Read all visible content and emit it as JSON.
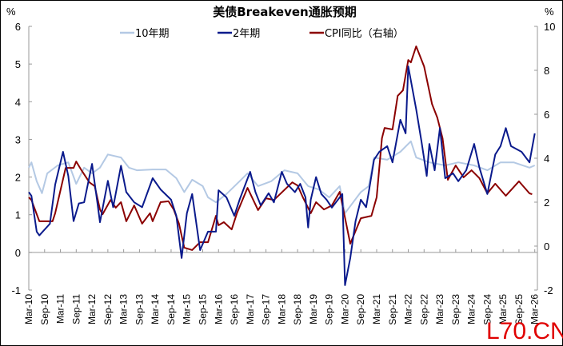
{
  "chart_data": {
    "type": "line",
    "title": "美债Breakeven通胀预期",
    "left_unit": "%",
    "right_unit": "%",
    "ylim_left": [
      -1,
      6
    ],
    "yticks_left": [
      "-1",
      "0",
      "1",
      "2",
      "3",
      "4",
      "5",
      "6"
    ],
    "ylim_right": [
      -2,
      10
    ],
    "yticks_right": [
      "-2",
      "0",
      "2",
      "4",
      "6",
      "8",
      "10"
    ],
    "xlim": [
      "2010-03",
      "2026-04"
    ],
    "xticks": [
      "Mar-10",
      "Sep-10",
      "Mar-11",
      "Sep-11",
      "Mar-12",
      "Sep-12",
      "Mar-13",
      "Sep-13",
      "Mar-14",
      "Sep-14",
      "Mar-15",
      "Sep-15",
      "Mar-16",
      "Sep-16",
      "Mar-17",
      "Sep-17",
      "Mar-18",
      "Sep-18",
      "Mar-19",
      "Sep-19",
      "Mar-20",
      "Sep-20",
      "Mar-21",
      "Sep-21",
      "Mar-22",
      "Sep-22",
      "Mar-23",
      "Sep-23",
      "Mar-24",
      "Sep-24",
      "Mar-25",
      "Sep-25",
      "Mar-26"
    ],
    "grid": false,
    "legend": "top",
    "series": [
      {
        "name": "10年期",
        "axis": "left",
        "color": "#b4c9e4",
        "points": [
          [
            "2010-03",
            2.25
          ],
          [
            "2010-04",
            2.39
          ],
          [
            "2010-06",
            1.89
          ],
          [
            "2010-08",
            1.57
          ],
          [
            "2010-10",
            2.1
          ],
          [
            "2011-02",
            2.31
          ],
          [
            "2011-06",
            2.39
          ],
          [
            "2011-09",
            1.82
          ],
          [
            "2011-12",
            2.25
          ],
          [
            "2012-03",
            2.1
          ],
          [
            "2012-06",
            2.25
          ],
          [
            "2012-09",
            2.6
          ],
          [
            "2013-02",
            2.52
          ],
          [
            "2013-05",
            2.25
          ],
          [
            "2013-08",
            2.18
          ],
          [
            "2014-02",
            2.2
          ],
          [
            "2014-07",
            2.2
          ],
          [
            "2014-11",
            1.97
          ],
          [
            "2015-02",
            1.6
          ],
          [
            "2015-05",
            1.93
          ],
          [
            "2015-09",
            1.76
          ],
          [
            "2015-11",
            1.46
          ],
          [
            "2016-02",
            1.33
          ],
          [
            "2016-06",
            1.55
          ],
          [
            "2016-11",
            1.89
          ],
          [
            "2017-02",
            2.1
          ],
          [
            "2017-06",
            1.76
          ],
          [
            "2017-11",
            1.89
          ],
          [
            "2018-04",
            2.18
          ],
          [
            "2018-09",
            2.1
          ],
          [
            "2019-01",
            1.76
          ],
          [
            "2019-05",
            1.67
          ],
          [
            "2019-09",
            1.46
          ],
          [
            "2020-01",
            1.76
          ],
          [
            "2020-03",
            1.04
          ],
          [
            "2020-09",
            1.6
          ],
          [
            "2020-12",
            1.76
          ],
          [
            "2021-02",
            2.52
          ],
          [
            "2021-07",
            2.46
          ],
          [
            "2021-12",
            2.67
          ],
          [
            "2022-04",
            2.95
          ],
          [
            "2022-06",
            2.52
          ],
          [
            "2022-11",
            2.39
          ],
          [
            "2023-05",
            2.31
          ],
          [
            "2023-10",
            2.39
          ],
          [
            "2024-04",
            2.31
          ],
          [
            "2024-09",
            2.18
          ],
          [
            "2025-02",
            2.39
          ],
          [
            "2025-07",
            2.39
          ],
          [
            "2026-01",
            2.25
          ],
          [
            "2026-03",
            2.31
          ]
        ]
      },
      {
        "name": "2年期",
        "axis": "left",
        "color": "#0a1a8c",
        "points": [
          [
            "2010-03",
            1.6
          ],
          [
            "2010-04",
            1.5
          ],
          [
            "2010-06",
            0.55
          ],
          [
            "2010-07",
            0.45
          ],
          [
            "2010-11",
            0.76
          ],
          [
            "2011-01",
            1.8
          ],
          [
            "2011-04",
            2.67
          ],
          [
            "2011-06",
            2.03
          ],
          [
            "2011-08",
            0.83
          ],
          [
            "2011-10",
            1.3
          ],
          [
            "2011-12",
            1.33
          ],
          [
            "2012-03",
            2.35
          ],
          [
            "2012-05",
            1.33
          ],
          [
            "2012-06",
            0.8
          ],
          [
            "2012-09",
            1.9
          ],
          [
            "2012-11",
            1.2
          ],
          [
            "2013-02",
            2.3
          ],
          [
            "2013-04",
            1.6
          ],
          [
            "2013-07",
            1.33
          ],
          [
            "2013-10",
            1.2
          ],
          [
            "2014-02",
            1.97
          ],
          [
            "2014-05",
            1.67
          ],
          [
            "2014-09",
            1.4
          ],
          [
            "2014-11",
            0.97
          ],
          [
            "2015-01",
            -0.15
          ],
          [
            "2015-03",
            1.04
          ],
          [
            "2015-05",
            1.55
          ],
          [
            "2015-08",
            0.06
          ],
          [
            "2015-11",
            0.55
          ],
          [
            "2016-02",
            0.55
          ],
          [
            "2016-03",
            1.65
          ],
          [
            "2016-06",
            1.46
          ],
          [
            "2016-09",
            0.97
          ],
          [
            "2016-11",
            1.4
          ],
          [
            "2017-03",
            2.14
          ],
          [
            "2017-05",
            1.6
          ],
          [
            "2017-07",
            1.25
          ],
          [
            "2017-10",
            1.57
          ],
          [
            "2017-12",
            1.33
          ],
          [
            "2018-03",
            2.14
          ],
          [
            "2018-05",
            1.82
          ],
          [
            "2018-08",
            1.6
          ],
          [
            "2018-10",
            1.82
          ],
          [
            "2018-12",
            1.46
          ],
          [
            "2019-01",
            0.66
          ],
          [
            "2019-02",
            1.4
          ],
          [
            "2019-04",
            2.0
          ],
          [
            "2019-06",
            1.55
          ],
          [
            "2019-08",
            1.4
          ],
          [
            "2019-10",
            1.19
          ],
          [
            "2020-01",
            1.46
          ],
          [
            "2020-02",
            1.55
          ],
          [
            "2020-03",
            -0.87
          ],
          [
            "2020-05",
            -0.15
          ],
          [
            "2020-07",
            0.83
          ],
          [
            "2020-09",
            1.4
          ],
          [
            "2020-11",
            1.2
          ],
          [
            "2020-12",
            1.6
          ],
          [
            "2021-02",
            2.46
          ],
          [
            "2021-04",
            2.67
          ],
          [
            "2021-07",
            2.82
          ],
          [
            "2021-09",
            2.39
          ],
          [
            "2021-12",
            3.52
          ],
          [
            "2022-02",
            3.16
          ],
          [
            "2022-03",
            4.94
          ],
          [
            "2022-06",
            3.8
          ],
          [
            "2022-08",
            2.95
          ],
          [
            "2022-10",
            2.03
          ],
          [
            "2022-11",
            2.88
          ],
          [
            "2023-01",
            2.18
          ],
          [
            "2023-03",
            3.3
          ],
          [
            "2023-05",
            1.97
          ],
          [
            "2023-08",
            2.1
          ],
          [
            "2023-10",
            1.89
          ],
          [
            "2024-01",
            2.18
          ],
          [
            "2024-04",
            2.88
          ],
          [
            "2024-06",
            2.25
          ],
          [
            "2024-09",
            1.55
          ],
          [
            "2024-12",
            2.6
          ],
          [
            "2025-02",
            2.82
          ],
          [
            "2025-04",
            3.3
          ],
          [
            "2025-06",
            2.82
          ],
          [
            "2025-10",
            2.67
          ],
          [
            "2026-01",
            2.39
          ],
          [
            "2026-03",
            3.16
          ]
        ]
      },
      {
        "name": "CPI同比（右轴）",
        "axis": "right",
        "color": "#8b0000",
        "points": [
          [
            "2010-03",
            2.22
          ],
          [
            "2010-04",
            2.1
          ],
          [
            "2010-07",
            1.13
          ],
          [
            "2010-09",
            1.13
          ],
          [
            "2010-12",
            1.13
          ],
          [
            "2011-01",
            1.5
          ],
          [
            "2011-05",
            3.56
          ],
          [
            "2011-08",
            3.56
          ],
          [
            "2011-09",
            3.85
          ],
          [
            "2011-11",
            3.45
          ],
          [
            "2012-02",
            2.9
          ],
          [
            "2012-04",
            2.73
          ],
          [
            "2012-06",
            1.67
          ],
          [
            "2012-07",
            1.45
          ],
          [
            "2012-10",
            2.1
          ],
          [
            "2012-12",
            1.75
          ],
          [
            "2013-02",
            2.0
          ],
          [
            "2013-04",
            1.13
          ],
          [
            "2013-07",
            1.85
          ],
          [
            "2013-10",
            1.02
          ],
          [
            "2014-01",
            1.5
          ],
          [
            "2014-02",
            1.13
          ],
          [
            "2014-05",
            2.0
          ],
          [
            "2014-08",
            2.04
          ],
          [
            "2014-10",
            1.67
          ],
          [
            "2014-12",
            1.02
          ],
          [
            "2015-02",
            -0.07
          ],
          [
            "2015-05",
            -0.18
          ],
          [
            "2015-08",
            0.18
          ],
          [
            "2015-11",
            0.18
          ],
          [
            "2016-02",
            1.38
          ],
          [
            "2016-03",
            0.95
          ],
          [
            "2016-05",
            1.09
          ],
          [
            "2016-08",
            0.76
          ],
          [
            "2016-10",
            1.5
          ],
          [
            "2017-02",
            2.65
          ],
          [
            "2017-06",
            1.64
          ],
          [
            "2017-09",
            2.18
          ],
          [
            "2017-12",
            2.1
          ],
          [
            "2018-07",
            2.9
          ],
          [
            "2018-09",
            2.76
          ],
          [
            "2018-11",
            2.22
          ],
          [
            "2019-02",
            1.5
          ],
          [
            "2019-04",
            2.0
          ],
          [
            "2019-07",
            1.67
          ],
          [
            "2019-10",
            1.85
          ],
          [
            "2020-01",
            2.47
          ],
          [
            "2020-05",
            0.11
          ],
          [
            "2020-09",
            1.27
          ],
          [
            "2021-01",
            1.38
          ],
          [
            "2021-03",
            2.22
          ],
          [
            "2021-05",
            4.91
          ],
          [
            "2021-06",
            5.38
          ],
          [
            "2021-09",
            5.31
          ],
          [
            "2021-11",
            6.84
          ],
          [
            "2022-01",
            7.09
          ],
          [
            "2022-03",
            8.47
          ],
          [
            "2022-04",
            8.36
          ],
          [
            "2022-06",
            9.09
          ],
          [
            "2022-09",
            8.18
          ],
          [
            "2022-12",
            6.47
          ],
          [
            "2023-02",
            5.85
          ],
          [
            "2023-04",
            4.91
          ],
          [
            "2023-06",
            3.02
          ],
          [
            "2023-09",
            3.67
          ],
          [
            "2023-12",
            3.13
          ],
          [
            "2024-03",
            3.45
          ],
          [
            "2024-06",
            3.09
          ],
          [
            "2024-09",
            2.4
          ],
          [
            "2024-12",
            2.84
          ],
          [
            "2025-04",
            2.29
          ],
          [
            "2025-09",
            2.95
          ],
          [
            "2026-01",
            2.4
          ],
          [
            "2026-02",
            2.36
          ]
        ]
      }
    ]
  },
  "watermark": "L70.CN",
  "negative_tick_color": "#e00000"
}
